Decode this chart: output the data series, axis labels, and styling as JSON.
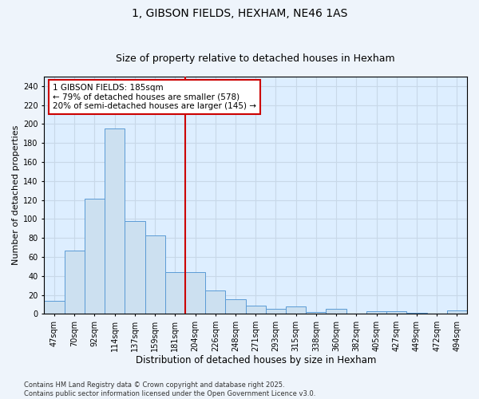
{
  "title": "1, GIBSON FIELDS, HEXHAM, NE46 1AS",
  "subtitle": "Size of property relative to detached houses in Hexham",
  "xlabel": "Distribution of detached houses by size in Hexham",
  "ylabel": "Number of detached properties",
  "bar_labels": [
    "47sqm",
    "70sqm",
    "92sqm",
    "114sqm",
    "137sqm",
    "159sqm",
    "181sqm",
    "204sqm",
    "226sqm",
    "248sqm",
    "271sqm",
    "293sqm",
    "315sqm",
    "338sqm",
    "360sqm",
    "382sqm",
    "405sqm",
    "427sqm",
    "449sqm",
    "472sqm",
    "494sqm"
  ],
  "bar_values": [
    14,
    67,
    121,
    195,
    98,
    83,
    44,
    44,
    25,
    15,
    9,
    5,
    8,
    2,
    5,
    0,
    3,
    3,
    1,
    0,
    4
  ],
  "bar_color": "#cce0f0",
  "bar_edgecolor": "#5b9bd5",
  "vline_color": "#cc0000",
  "annotation_text": "1 GIBSON FIELDS: 185sqm\n← 79% of detached houses are smaller (578)\n20% of semi-detached houses are larger (145) →",
  "annotation_box_facecolor": "#ffffff",
  "annotation_box_edgecolor": "#cc0000",
  "ylim": [
    0,
    250
  ],
  "yticks": [
    0,
    20,
    40,
    60,
    80,
    100,
    120,
    140,
    160,
    180,
    200,
    220,
    240
  ],
  "grid_color": "#c8d8e8",
  "plot_bg_color": "#ddeeff",
  "fig_bg_color": "#eef4fb",
  "footer_text": "Contains HM Land Registry data © Crown copyright and database right 2025.\nContains public sector information licensed under the Open Government Licence v3.0.",
  "title_fontsize": 10,
  "subtitle_fontsize": 9,
  "xlabel_fontsize": 8.5,
  "ylabel_fontsize": 8,
  "tick_fontsize": 7,
  "annotation_fontsize": 7.5,
  "footer_fontsize": 6
}
